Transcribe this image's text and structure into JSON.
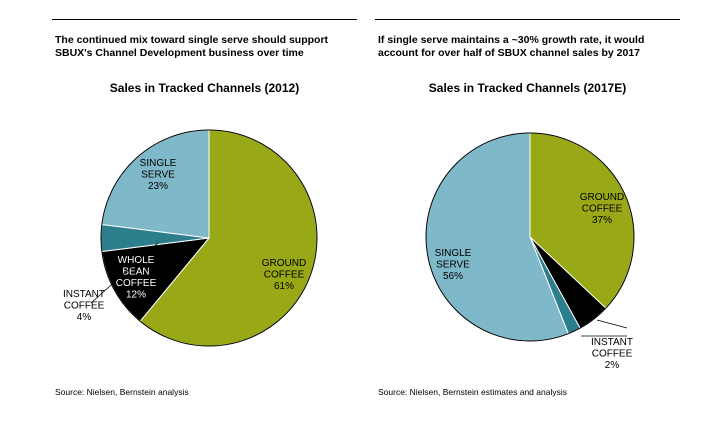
{
  "colors": {
    "ground_coffee": "#98a817",
    "single_serve": "#7fb8c8",
    "instant_coffee": "#2d7e8c",
    "whole_bean": "#000000"
  },
  "chart_data": [
    {
      "type": "pie",
      "headline": [
        "The continued mix toward single serve should support",
        "SBUX's Channel Development business over time"
      ],
      "title": "Sales in Tracked Channels  (2012)",
      "source": "Source: Nielsen, Bernstein analysis",
      "slices": [
        {
          "name": "GROUND COFFEE",
          "label_lines": [
            "GROUND",
            "COFFEE",
            "61%"
          ],
          "value": 61,
          "color": "#98a817",
          "text_color": "#000000"
        },
        {
          "name": "WHOLE BEAN COFFEE",
          "label_lines": [
            "WHOLE",
            "BEAN",
            "COFFEE",
            "12%"
          ],
          "value": 12,
          "color": "#000000",
          "text_color": "#ffffff"
        },
        {
          "name": "INSTANT COFFEE",
          "label_lines": [
            "INSTANT",
            "COFFEE",
            "4%"
          ],
          "value": 4,
          "color": "#2d7e8c",
          "text_color": "#000000"
        },
        {
          "name": "SINGLE SERVE",
          "label_lines": [
            "SINGLE",
            "SERVE",
            "23%"
          ],
          "value": 23,
          "color": "#7fb8c8",
          "text_color": "#000000"
        }
      ]
    },
    {
      "type": "pie",
      "headline": [
        "If single serve maintains a ~30% growth rate, it would",
        "account for over half of SBUX channel sales by 2017"
      ],
      "title": "Sales in Tracked Channels  (2017E)",
      "source": "Source: Nielsen, Bernstein estimates and analysis",
      "slices": [
        {
          "name": "GROUND COFFEE",
          "label_lines": [
            "GROUND",
            "COFFEE",
            "37%"
          ],
          "value": 37,
          "color": "#98a817",
          "text_color": "#000000"
        },
        {
          "name": "WHOLE BEAN COFFEE",
          "label_lines": [],
          "value": 5,
          "color": "#000000",
          "text_color": "#ffffff"
        },
        {
          "name": "INSTANT COFFEE",
          "label_lines": [
            "INSTANT",
            "COFFEE",
            "2%"
          ],
          "value": 2,
          "color": "#2d7e8c",
          "text_color": "#000000"
        },
        {
          "name": "SINGLE SERVE",
          "label_lines": [
            "SINGLE",
            "SERVE",
            "56%"
          ],
          "value": 56,
          "color": "#7fb8c8",
          "text_color": "#000000"
        }
      ]
    }
  ]
}
